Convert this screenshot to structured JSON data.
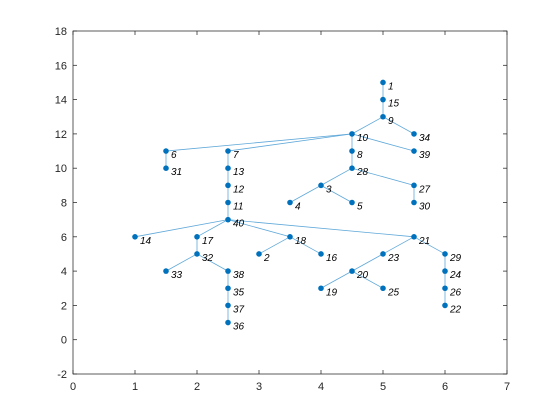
{
  "chart_data": {
    "type": "graph",
    "title": "",
    "xlabel": "",
    "ylabel": "",
    "xlim": [
      0,
      7
    ],
    "ylim": [
      -2,
      18
    ],
    "xticks": [
      "0",
      "1",
      "2",
      "3",
      "4",
      "5",
      "6",
      "7"
    ],
    "yticks": [
      "-2",
      "0",
      "2",
      "4",
      "6",
      "8",
      "10",
      "12",
      "14",
      "16",
      "18"
    ],
    "grid": false,
    "colors": {
      "edge": "#5fa8d9",
      "node": "#0072bd",
      "axis": "#262626"
    },
    "nodes": [
      {
        "id": "1",
        "x": 5.0,
        "y": 15
      },
      {
        "id": "15",
        "x": 5.0,
        "y": 14
      },
      {
        "id": "9",
        "x": 5.0,
        "y": 13
      },
      {
        "id": "10",
        "x": 4.5,
        "y": 12
      },
      {
        "id": "34",
        "x": 5.5,
        "y": 12
      },
      {
        "id": "6",
        "x": 1.5,
        "y": 11
      },
      {
        "id": "7",
        "x": 2.5,
        "y": 11
      },
      {
        "id": "8",
        "x": 4.5,
        "y": 11
      },
      {
        "id": "39",
        "x": 5.5,
        "y": 11
      },
      {
        "id": "31",
        "x": 1.5,
        "y": 10
      },
      {
        "id": "13",
        "x": 2.5,
        "y": 10
      },
      {
        "id": "28",
        "x": 4.5,
        "y": 10
      },
      {
        "id": "12",
        "x": 2.5,
        "y": 9
      },
      {
        "id": "3",
        "x": 4.0,
        "y": 9
      },
      {
        "id": "27",
        "x": 5.5,
        "y": 9
      },
      {
        "id": "11",
        "x": 2.5,
        "y": 8
      },
      {
        "id": "4",
        "x": 3.5,
        "y": 8
      },
      {
        "id": "5",
        "x": 4.5,
        "y": 8
      },
      {
        "id": "30",
        "x": 5.5,
        "y": 8
      },
      {
        "id": "40",
        "x": 2.5,
        "y": 7
      },
      {
        "id": "14",
        "x": 1.0,
        "y": 6
      },
      {
        "id": "17",
        "x": 2.0,
        "y": 6
      },
      {
        "id": "18",
        "x": 3.5,
        "y": 6
      },
      {
        "id": "21",
        "x": 5.5,
        "y": 6
      },
      {
        "id": "32",
        "x": 2.0,
        "y": 5
      },
      {
        "id": "2",
        "x": 3.0,
        "y": 5
      },
      {
        "id": "16",
        "x": 4.0,
        "y": 5
      },
      {
        "id": "23",
        "x": 5.0,
        "y": 5
      },
      {
        "id": "29",
        "x": 6.0,
        "y": 5
      },
      {
        "id": "33",
        "x": 1.5,
        "y": 4
      },
      {
        "id": "38",
        "x": 2.5,
        "y": 4
      },
      {
        "id": "20",
        "x": 4.5,
        "y": 4
      },
      {
        "id": "24",
        "x": 6.0,
        "y": 4
      },
      {
        "id": "35",
        "x": 2.5,
        "y": 3
      },
      {
        "id": "19",
        "x": 4.0,
        "y": 3
      },
      {
        "id": "25",
        "x": 5.0,
        "y": 3
      },
      {
        "id": "26",
        "x": 6.0,
        "y": 3
      },
      {
        "id": "37",
        "x": 2.5,
        "y": 2
      },
      {
        "id": "22",
        "x": 6.0,
        "y": 2
      },
      {
        "id": "36",
        "x": 2.5,
        "y": 1
      }
    ],
    "edges": [
      [
        "1",
        "15"
      ],
      [
        "15",
        "9"
      ],
      [
        "9",
        "10"
      ],
      [
        "9",
        "34"
      ],
      [
        "10",
        "6"
      ],
      [
        "10",
        "7"
      ],
      [
        "10",
        "8"
      ],
      [
        "10",
        "39"
      ],
      [
        "6",
        "31"
      ],
      [
        "7",
        "13"
      ],
      [
        "13",
        "12"
      ],
      [
        "12",
        "11"
      ],
      [
        "11",
        "40"
      ],
      [
        "8",
        "28"
      ],
      [
        "28",
        "3"
      ],
      [
        "28",
        "27"
      ],
      [
        "3",
        "4"
      ],
      [
        "3",
        "5"
      ],
      [
        "27",
        "30"
      ],
      [
        "40",
        "14"
      ],
      [
        "40",
        "17"
      ],
      [
        "40",
        "18"
      ],
      [
        "40",
        "21"
      ],
      [
        "17",
        "32"
      ],
      [
        "32",
        "33"
      ],
      [
        "32",
        "38"
      ],
      [
        "38",
        "35"
      ],
      [
        "35",
        "37"
      ],
      [
        "37",
        "36"
      ],
      [
        "18",
        "2"
      ],
      [
        "18",
        "16"
      ],
      [
        "21",
        "23"
      ],
      [
        "21",
        "29"
      ],
      [
        "23",
        "20"
      ],
      [
        "20",
        "19"
      ],
      [
        "20",
        "25"
      ],
      [
        "29",
        "24"
      ],
      [
        "24",
        "26"
      ],
      [
        "26",
        "22"
      ]
    ]
  }
}
